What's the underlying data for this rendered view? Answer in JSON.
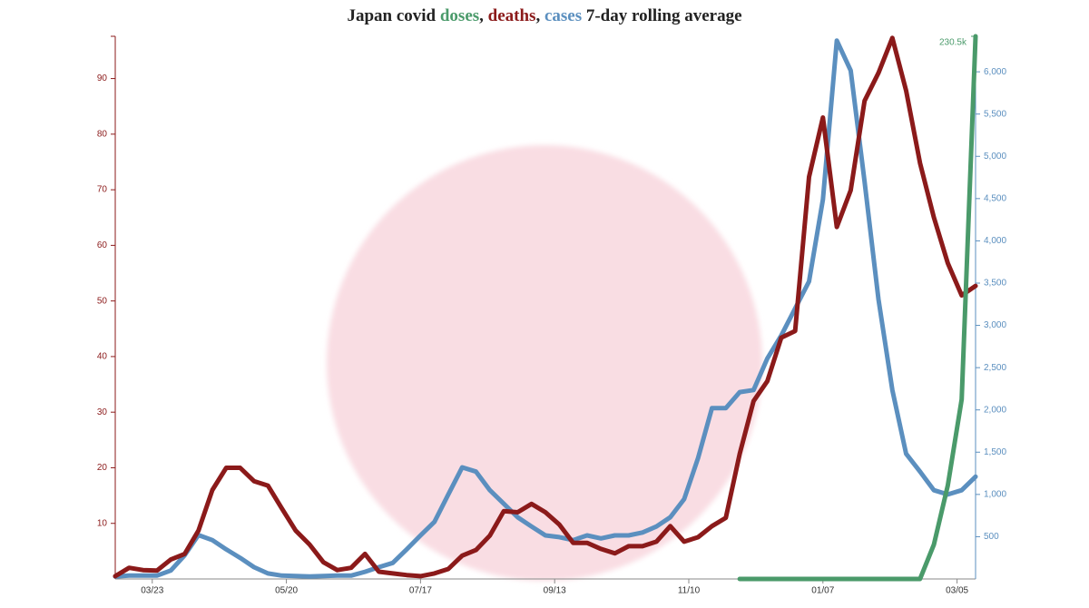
{
  "chart_data": {
    "type": "line",
    "title": [
      "Japan covid ",
      "doses",
      ", ",
      "deaths",
      ", ",
      "cases",
      " 7-day rolling average"
    ],
    "x": [
      0,
      6,
      12,
      18,
      24,
      30,
      36,
      42,
      48,
      54,
      60,
      66,
      72,
      78,
      84,
      90,
      96,
      102,
      108,
      114,
      120,
      126,
      132,
      138,
      144,
      150,
      156,
      162,
      168,
      174,
      180,
      186,
      192,
      198,
      204,
      210,
      216,
      222,
      228,
      234,
      240,
      246,
      252,
      258,
      264,
      270,
      276,
      282,
      288,
      294,
      300,
      306,
      312,
      318,
      324,
      330,
      336,
      342,
      348,
      354,
      360,
      366,
      372
    ],
    "xlim": [
      0,
      372
    ],
    "xticks": [
      {
        "value": 16,
        "label": "03/23"
      },
      {
        "value": 74,
        "label": "05/20"
      },
      {
        "value": 132,
        "label": "07/17"
      },
      {
        "value": 190,
        "label": "09/13"
      },
      {
        "value": 248,
        "label": "11/10"
      },
      {
        "value": 306,
        "label": "01/07"
      },
      {
        "value": 364,
        "label": "03/05"
      }
    ],
    "ylim": [
      0,
      97.6
    ],
    "yticks": [
      10,
      20,
      30,
      40,
      50,
      60,
      70,
      80,
      90
    ],
    "y2lim": [
      0,
      6420
    ],
    "y2ticks": [
      500,
      {
        "value": 1000,
        "label": "1,000"
      },
      {
        "value": 1500,
        "label": "1,500"
      },
      {
        "value": 2000,
        "label": "2,000"
      },
      {
        "value": 2500,
        "label": "2,500"
      },
      {
        "value": 3000,
        "label": "3,000"
      },
      {
        "value": 3500,
        "label": "3,500"
      },
      {
        "value": 4000,
        "label": "4,000"
      },
      {
        "value": 4500,
        "label": "4,500"
      },
      {
        "value": 5000,
        "label": "5,000"
      },
      {
        "value": 5500,
        "label": "5,500"
      },
      {
        "value": 6000,
        "label": "6,000"
      }
    ],
    "y3lim": [
      0,
      230500
    ],
    "y3ticks": [
      {
        "value": 230500,
        "label": "230.5k"
      }
    ],
    "series": [
      {
        "name": "cases",
        "color": "#5b8fbf",
        "axis": "y2",
        "values": [
          30,
          40,
          40,
          40,
          100,
          280,
          520,
          460,
          350,
          250,
          140,
          65,
          40,
          35,
          30,
          35,
          40,
          40,
          85,
          140,
          190,
          350,
          515,
          675,
          1000,
          1320,
          1270,
          1050,
          890,
          730,
          620,
          515,
          495,
          460,
          515,
          480,
          515,
          515,
          550,
          620,
          730,
          945,
          1430,
          2020,
          2020,
          2210,
          2235,
          2610,
          2880,
          3200,
          3520,
          4490,
          6370,
          6015,
          4700,
          3310,
          2235,
          1480,
          1270,
          1050,
          1000,
          1050,
          1210
        ]
      },
      {
        "name": "deaths",
        "color": "#8b1a1a",
        "axis": "y",
        "values": [
          0.5,
          2,
          1.6,
          1.5,
          3.5,
          4.5,
          8.7,
          16,
          20,
          20,
          17.6,
          16.8,
          12.7,
          8.7,
          6.2,
          3,
          1.6,
          2,
          4.5,
          1.3,
          1,
          0.7,
          0.5,
          1,
          1.8,
          4.2,
          5.2,
          7.8,
          12.2,
          12,
          13.5,
          12,
          9.8,
          6.5,
          6.5,
          5.4,
          4.6,
          5.9,
          5.9,
          6.7,
          9.5,
          6.7,
          7.5,
          9.5,
          11,
          22.5,
          32,
          35.6,
          43.4,
          44.6,
          72.3,
          83,
          63.3,
          69.9,
          86,
          91,
          97.3,
          87.8,
          74.8,
          65,
          56.8,
          51,
          52.7
        ]
      },
      {
        "name": "doses",
        "color": "#4a9a6a",
        "axis": "y3",
        "values": [
          null,
          null,
          null,
          null,
          null,
          null,
          null,
          null,
          null,
          null,
          null,
          null,
          null,
          null,
          null,
          null,
          null,
          null,
          null,
          null,
          null,
          null,
          null,
          null,
          null,
          null,
          null,
          null,
          null,
          null,
          null,
          null,
          null,
          null,
          null,
          null,
          null,
          null,
          null,
          null,
          null,
          null,
          null,
          null,
          null,
          0,
          0,
          0,
          0,
          0,
          0,
          0,
          0,
          0,
          0,
          0,
          0,
          0,
          0,
          14600,
          39700,
          76300,
          230500
        ]
      }
    ]
  }
}
